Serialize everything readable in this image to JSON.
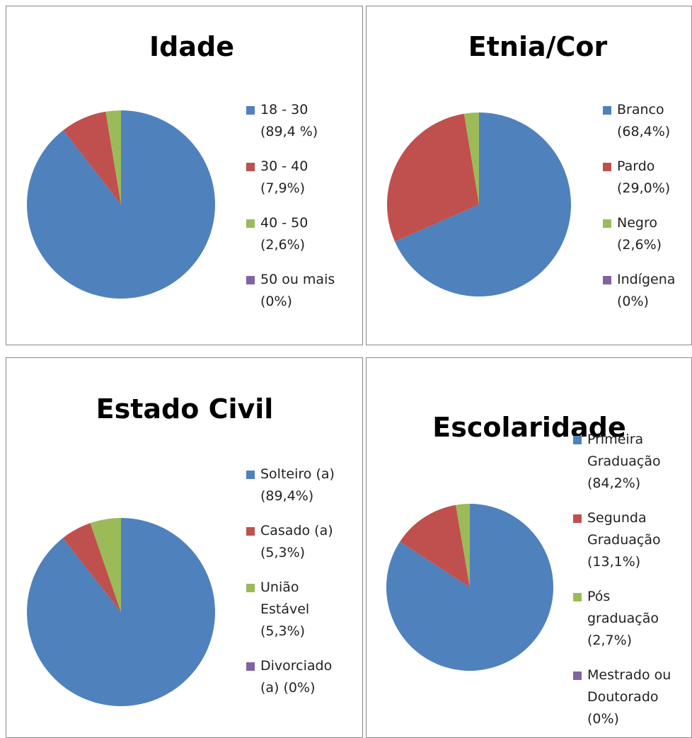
{
  "chart_data": [
    {
      "type": "pie",
      "title": "Idade",
      "categories": [
        "18 - 30",
        "30 - 40",
        "40 - 50",
        "50 ou mais"
      ],
      "values": [
        89.4,
        7.9,
        2.6,
        0
      ],
      "value_labels": [
        "(89,4 %)",
        "(7,9%)",
        "(2,6%)",
        "(0%)"
      ],
      "colors": [
        "#4f81bd",
        "#c0504d",
        "#9bbb59",
        "#8064a2"
      ]
    },
    {
      "type": "pie",
      "title": "Etnia/Cor",
      "categories": [
        "Branco",
        "Pardo",
        "Negro",
        "Indígena"
      ],
      "values": [
        68.4,
        29.0,
        2.6,
        0
      ],
      "value_labels": [
        "(68,4%)",
        "(29,0%)",
        "(2,6%)",
        "(0%)"
      ],
      "colors": [
        "#4f81bd",
        "#c0504d",
        "#9bbb59",
        "#8064a2"
      ]
    },
    {
      "type": "pie",
      "title": "Estado Civil",
      "categories": [
        "Solteiro (a)",
        "Casado (a)",
        "União Estável",
        "Divorciado (a)"
      ],
      "values": [
        89.4,
        5.3,
        5.3,
        0
      ],
      "value_labels": [
        "(89,4%)",
        "(5,3%)",
        "(5,3%)",
        "(0%)"
      ],
      "colors": [
        "#4f81bd",
        "#c0504d",
        "#9bbb59",
        "#8064a2"
      ]
    },
    {
      "type": "pie",
      "title": "Escolaridade",
      "categories": [
        "Primeira Graduação",
        "Segunda Graduação",
        "Pós graduação",
        "Mestrado ou Doutorado"
      ],
      "values": [
        84.2,
        13.1,
        2.7,
        0
      ],
      "value_labels": [
        "(84,2%)",
        "(13,1%)",
        "(2,7%)",
        "(0%)"
      ],
      "colors": [
        "#4f81bd",
        "#c0504d",
        "#9bbb59",
        "#8064a2"
      ]
    }
  ]
}
